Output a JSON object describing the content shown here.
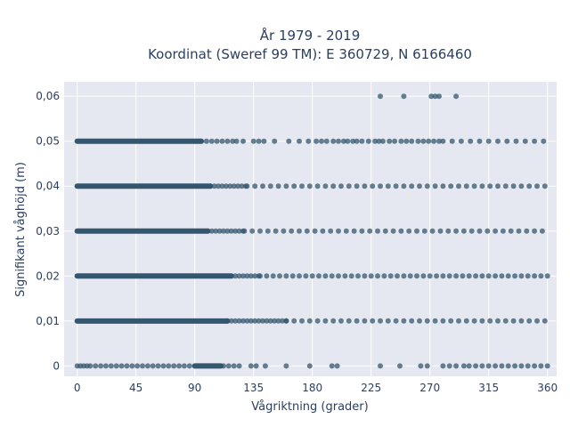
{
  "chart_data": {
    "type": "scatter",
    "title": [
      "År 1979 - 2019",
      "Koordinat (Sweref 99 TM): E 360729, N 6166460"
    ],
    "xlabel": "Vågriktning (grader)",
    "ylabel": "Signifikant våghöjd (m)",
    "xlim": [
      -10,
      367
    ],
    "ylim": [
      -0.0023,
      0.0632
    ],
    "xticks": [
      0,
      45,
      90,
      135,
      180,
      225,
      270,
      315,
      360
    ],
    "yticks": [
      0,
      0.01,
      0.02,
      0.03,
      0.04,
      0.05,
      0.06
    ],
    "ytick_labels": [
      "0",
      "0,01",
      "0,02",
      "0,03",
      "0,04",
      "0,05",
      "0,06"
    ],
    "grid": true,
    "colors": {
      "marker": "#34566e",
      "plot_bg": "#e5e8f0",
      "grid": "#ffffff",
      "text": "#2a3f5f"
    },
    "series": [
      {
        "y": 0.06,
        "segments": [],
        "points": [
          232,
          250,
          271,
          274,
          277,
          290
        ]
      },
      {
        "y": 0.05,
        "segments": [
          [
            0,
            95
          ],
          [
            95,
            115,
            4
          ],
          [
            280,
            360,
            7
          ]
        ],
        "points": [
          119,
          122,
          127,
          135,
          139,
          143,
          151,
          162,
          170,
          177,
          183,
          187,
          191,
          196,
          200,
          204,
          207,
          211,
          214,
          218,
          223,
          228,
          231,
          234,
          239,
          243,
          248,
          252,
          256,
          261,
          265,
          269,
          273,
          277
        ]
      },
      {
        "y": 0.04,
        "segments": [
          [
            0,
            102
          ],
          [
            102,
            130,
            3
          ],
          [
            130,
            360,
            6
          ]
        ],
        "points": []
      },
      {
        "y": 0.03,
        "segments": [
          [
            0,
            100
          ],
          [
            100,
            128,
            3
          ],
          [
            128,
            360,
            6
          ]
        ],
        "points": []
      },
      {
        "y": 0.02,
        "segments": [
          [
            0,
            118
          ],
          [
            118,
            140,
            3
          ],
          [
            140,
            360,
            5
          ]
        ],
        "points": []
      },
      {
        "y": 0.01,
        "segments": [
          [
            0,
            115
          ],
          [
            115,
            160,
            3
          ],
          [
            160,
            360,
            6
          ]
        ],
        "points": []
      },
      {
        "y": 0,
        "segments": [
          [
            0,
            8,
            2.5
          ],
          [
            10,
            90,
            4
          ],
          [
            90,
            110
          ],
          [
            300,
            360,
            5
          ]
        ],
        "points": [
          112,
          116,
          120,
          124,
          133,
          137,
          144,
          160,
          178,
          195,
          199,
          232,
          247,
          263,
          268,
          280,
          285,
          290,
          296
        ]
      }
    ]
  }
}
